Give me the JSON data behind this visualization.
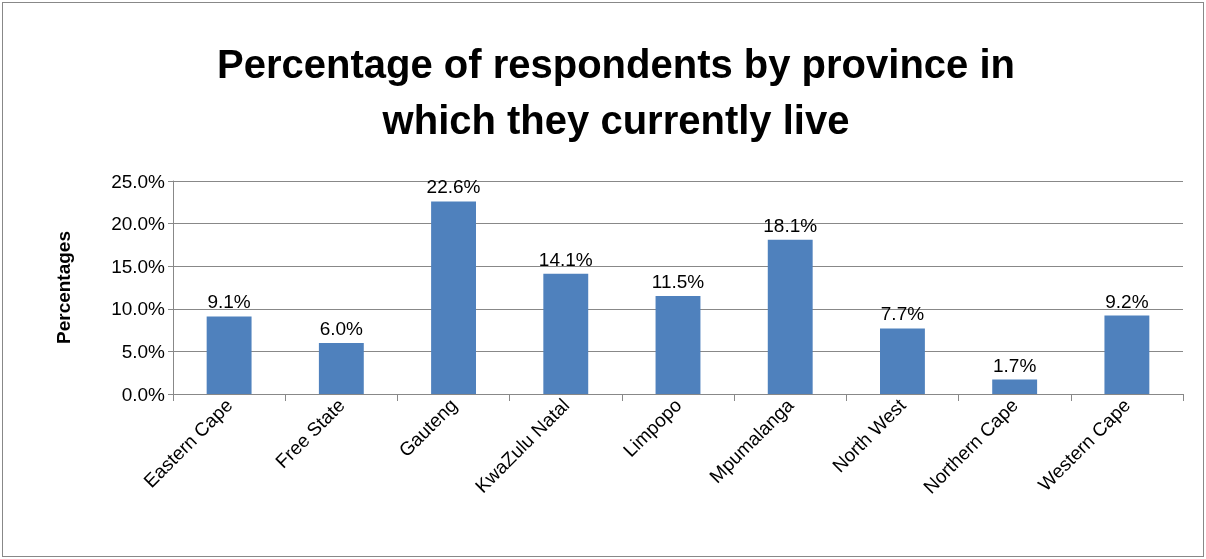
{
  "chart_data": {
    "type": "bar",
    "title": "Percentage of respondents by province in\nwhich they currently live",
    "ylabel": "Percentages",
    "categories": [
      "Eastern Cape",
      "Free State",
      "Gauteng",
      "KwaZulu Natal",
      "Limpopo",
      "Mpumalanga",
      "North West",
      "Northern Cape",
      "Western Cape"
    ],
    "values": [
      9.1,
      6.0,
      22.6,
      14.1,
      11.5,
      18.1,
      7.7,
      1.7,
      9.2
    ],
    "value_labels": [
      "9.1%",
      "6.0%",
      "22.6%",
      "14.1%",
      "11.5%",
      "18.1%",
      "7.7%",
      "1.7%",
      "9.2%"
    ],
    "color": "#4f81bd",
    "ylim": [
      0,
      25
    ],
    "yticks": [
      {
        "value": 0,
        "label": "0.0%"
      },
      {
        "value": 5,
        "label": "5.0%"
      },
      {
        "value": 10,
        "label": "10.0%"
      },
      {
        "value": 15,
        "label": "15.0%"
      },
      {
        "value": 20,
        "label": "20.0%"
      },
      {
        "value": 25,
        "label": "25.0%"
      }
    ],
    "grid": "y"
  }
}
